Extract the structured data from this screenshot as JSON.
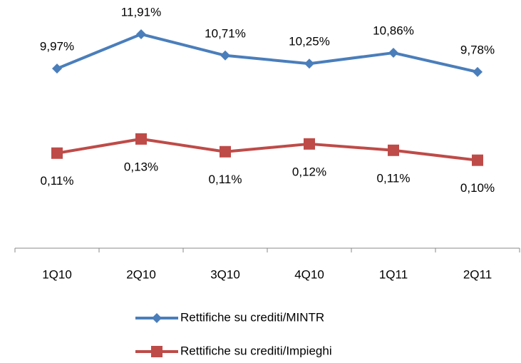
{
  "chart_data": {
    "type": "line",
    "categories": [
      "1Q10",
      "2Q10",
      "3Q10",
      "4Q10",
      "1Q11",
      "2Q11"
    ],
    "series": [
      {
        "name": "Rettifiche su crediti/MINTR",
        "color": "#4a7ebb",
        "values": [
          9.97,
          11.91,
          10.71,
          10.25,
          10.86,
          9.78
        ],
        "value_labels": [
          "9,97%",
          "11,91%",
          "10,71%",
          "10,25%",
          "10,86%",
          "9,78%"
        ]
      },
      {
        "name": "Rettifiche su crediti/Impieghi",
        "color": "#be4b48",
        "axis": "y2",
        "values": [
          0.11,
          0.13,
          0.112,
          0.123,
          0.114,
          0.1
        ],
        "value_labels": [
          "0,11%",
          "0,13%",
          "0,11%",
          "0,12%",
          "0,11%",
          "0,10%"
        ]
      }
    ],
    "ylim": [
      0,
      14
    ],
    "y2lim": [
      -0.02,
      0.33
    ],
    "grid": false
  }
}
